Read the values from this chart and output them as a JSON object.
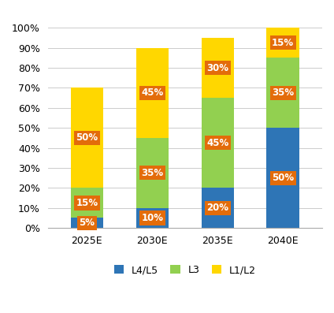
{
  "categories": [
    "2025E",
    "2030E",
    "2035E",
    "2040E"
  ],
  "L4L5": [
    5,
    10,
    20,
    50
  ],
  "L3": [
    15,
    35,
    45,
    35
  ],
  "L1L2": [
    50,
    45,
    30,
    15
  ],
  "L4L5_color": "#2E75B6",
  "L3_color": "#92D050",
  "L1L2_color": "#FFD700",
  "label_bg_color": "#E36C0A",
  "label_text_color": "#FFFFFF",
  "yticks": [
    0,
    10,
    20,
    30,
    40,
    50,
    60,
    70,
    80,
    90,
    100
  ],
  "figsize": [
    4.24,
    3.97
  ],
  "dpi": 100,
  "bar_width": 0.5,
  "legend_labels": [
    "L4/L5",
    "L3",
    "L1/L2"
  ],
  "label_fontsize": 8.5,
  "tick_fontsize": 9
}
